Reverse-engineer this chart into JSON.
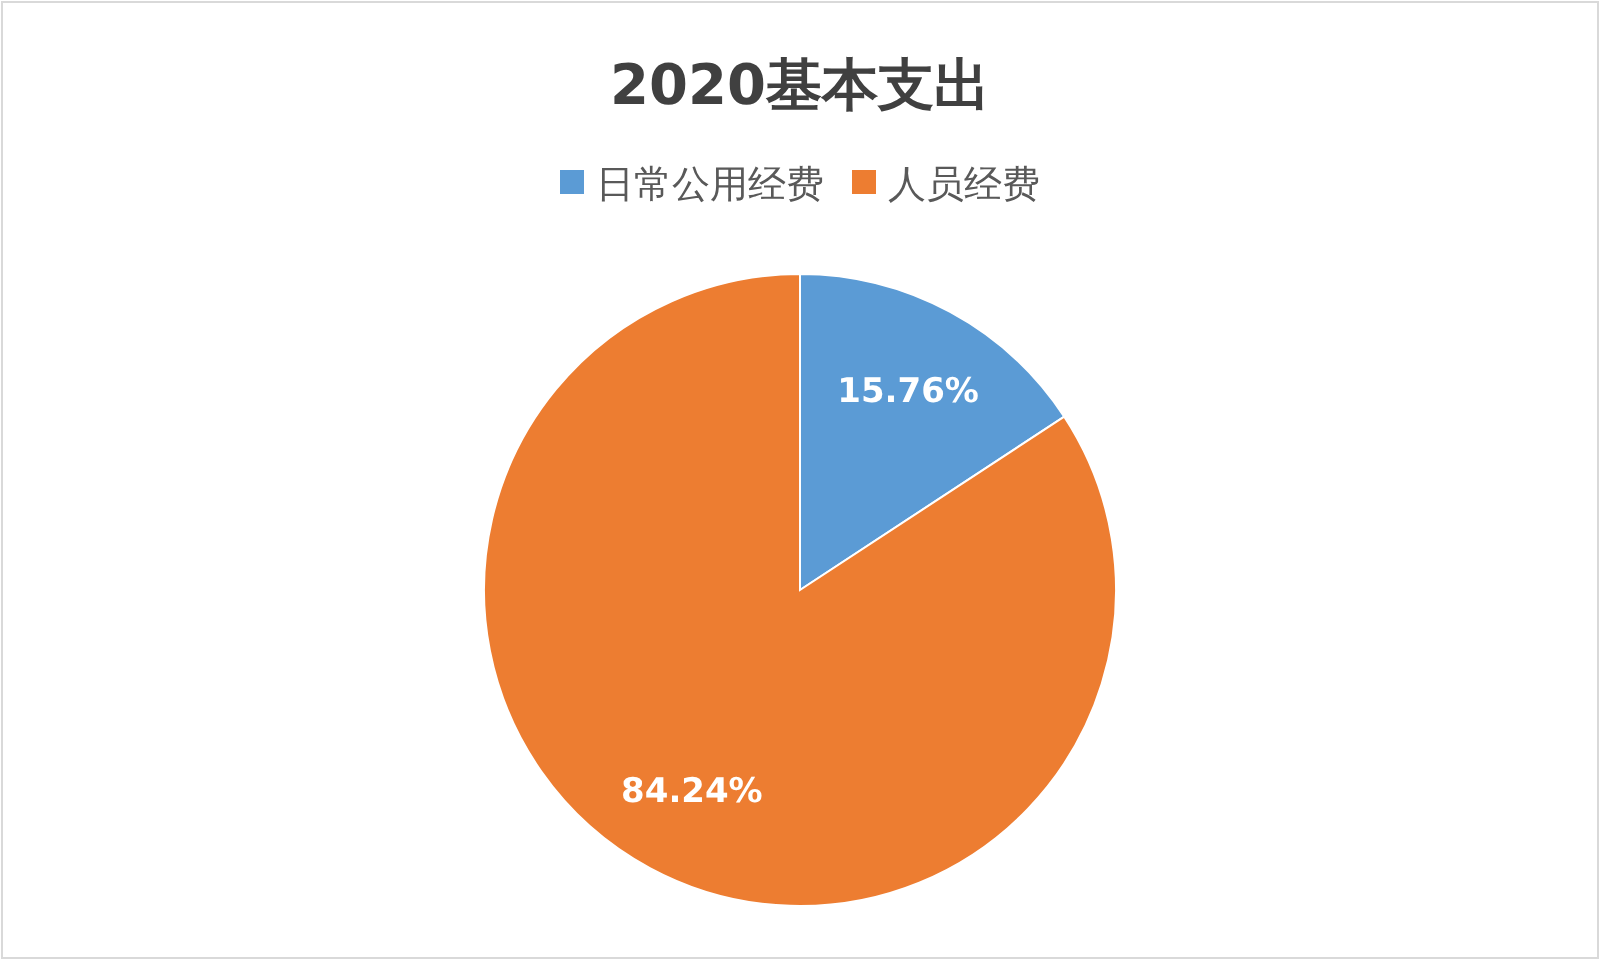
{
  "chart_data": {
    "type": "pie",
    "title": "2020基本支出",
    "categories": [
      "日常公用经费",
      "人员经费"
    ],
    "values": [
      15.76,
      84.24
    ],
    "colors": [
      "#5b9bd5",
      "#ed7d31"
    ],
    "value_labels": [
      "15.76%",
      "84.24%"
    ],
    "legend": "top"
  }
}
